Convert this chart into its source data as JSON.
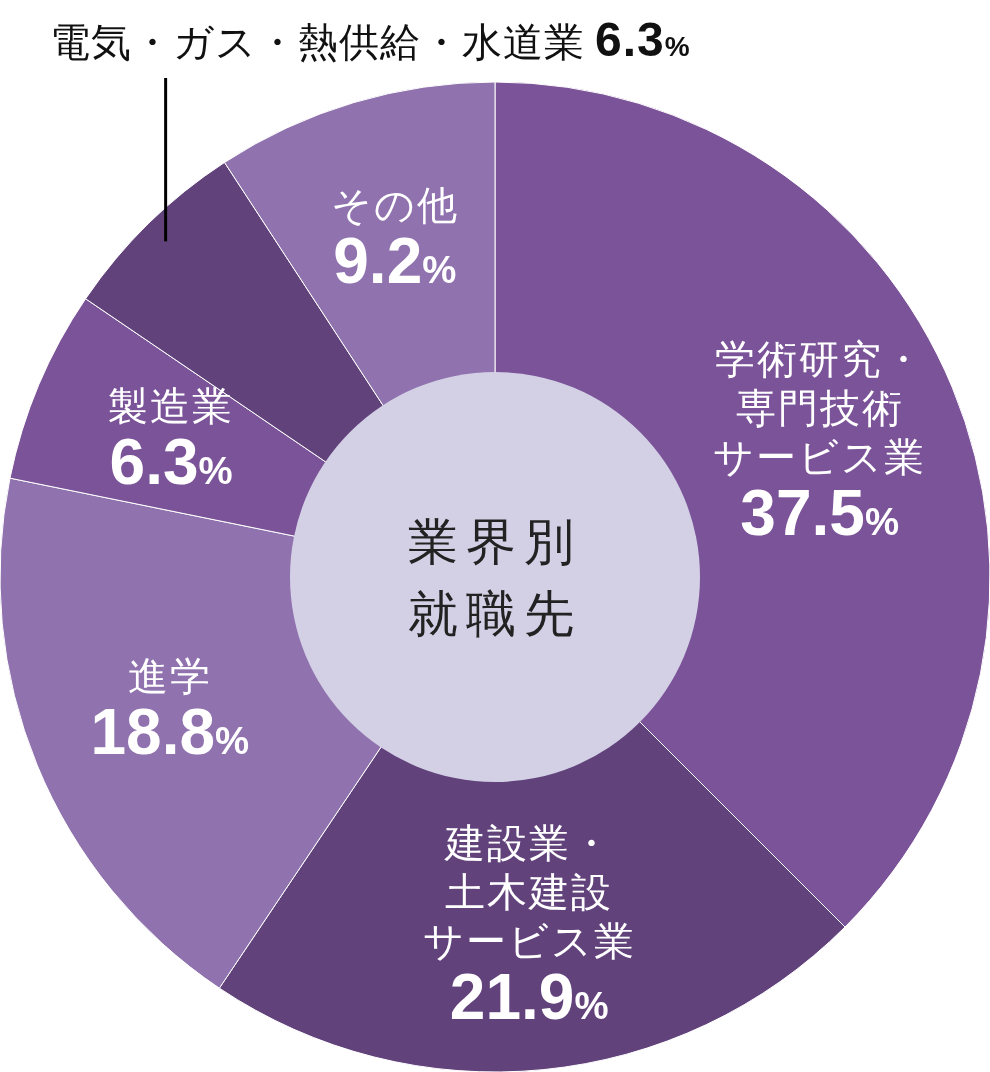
{
  "chart_data": {
    "type": "donut",
    "title": "業界別就職先",
    "categories": [
      "学術研究・専門技術サービス業",
      "建設業・土木建設サービス業",
      "進学",
      "製造業",
      "電気・ガス・熱供給・水道業",
      "その他"
    ],
    "values": [
      37.5,
      21.9,
      18.8,
      6.3,
      6.3,
      9.2
    ],
    "value_labels": [
      "37.5%",
      "21.9%",
      "18.8%",
      "6.3%",
      "6.3%",
      "9.2%"
    ],
    "colors": [
      "#7b5398",
      "#61427b",
      "#8f72ae",
      "#7b5398",
      "#61427b",
      "#8f72ae"
    ]
  }
}
